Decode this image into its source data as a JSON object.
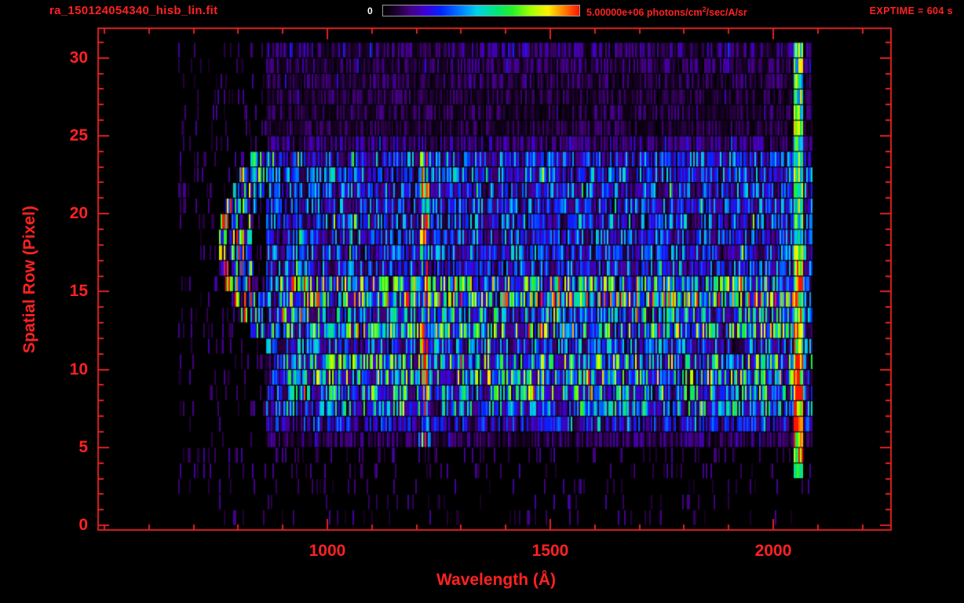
{
  "header": {
    "title": "ra_150124054340_hisb_lin.fit",
    "colorbar_min": "0",
    "colorbar_max_value": "5.00000e+06",
    "colorbar_units_prefix": " photons/cm",
    "colorbar_units_sup": "2",
    "colorbar_units_suffix": "/sec/A/sr",
    "exptime": "EXPTIME = 604 s"
  },
  "colors": {
    "background": "#000000",
    "accent_red": "#ff2222",
    "frame_red": "#dd2222",
    "colorbar_min_text": "#ffffff"
  },
  "chart_data": {
    "type": "heatmap",
    "title": "ra_150124054340_hisb_lin.fit",
    "xlabel": "Wavelength (Å)",
    "ylabel": "Spatial Row (Pixel)",
    "xlim": [
      486,
      2264
    ],
    "ylim": [
      -0.3,
      31.9
    ],
    "xticks": [
      1000,
      1500,
      2000
    ],
    "xminor_step": 100,
    "yticks": [
      0,
      5,
      10,
      15,
      20,
      25,
      30
    ],
    "yminor_step": 1,
    "value_range": [
      0,
      5000000
    ],
    "value_units": "photons/cm2/sec/A/sr",
    "exposure_time_s": 604,
    "data_wavelength_range": [
      665,
      2085
    ],
    "row_base_intensity": [
      0.02,
      0.02,
      0.025,
      0.03,
      0.05,
      0.1,
      0.22,
      0.38,
      0.42,
      0.48,
      0.46,
      0.3,
      0.5,
      0.4,
      0.56,
      0.5,
      0.27,
      0.29,
      0.27,
      0.3,
      0.27,
      0.28,
      0.3,
      0.27,
      0.13,
      0.08,
      0.09,
      0.08,
      0.09,
      0.1,
      0.12
    ],
    "features": {
      "blue_start_wavelength": 860,
      "bands_start_wavelength": 905,
      "band_onset": {
        "wavelength_range": [
          893,
          928
        ],
        "rows": [
          13,
          15
        ],
        "intensity": 0.66
      },
      "emission_line": {
        "center_wavelength": 1216,
        "sigma": 11,
        "rows": [
          5.5,
          24
        ],
        "intensity": 0.82
      },
      "arc_feature": {
        "apex_wavelength": 763,
        "apex_row": 18,
        "curvature": 2.3,
        "rows": [
          12.5,
          24
        ],
        "arcs": [
          {
            "offset": 0,
            "half_width": 9,
            "intensity": 0.95
          },
          {
            "offset": 21,
            "half_width": 7,
            "intensity": 0.7
          },
          {
            "offset": 39,
            "half_width": 8,
            "intensity": 0.78
          },
          {
            "offset": 57,
            "half_width": 7,
            "intensity": 0.5
          }
        ]
      },
      "right_edge_line": {
        "wavelength_range": [
          2042,
          2066
        ],
        "rows": [
          3,
          31
        ],
        "intensity_lower": 0.95,
        "intensity_upper": 0.68,
        "row_split": 17
      },
      "right_fade": {
        "wavelength_range": [
          2066,
          2085
        ],
        "max_intensity": 0.3
      }
    },
    "colormap_stops": [
      [
        0.0,
        0,
        0,
        0
      ],
      [
        0.06,
        25,
        0,
        40
      ],
      [
        0.14,
        70,
        0,
        130
      ],
      [
        0.22,
        60,
        0,
        220
      ],
      [
        0.3,
        0,
        40,
        255
      ],
      [
        0.4,
        0,
        130,
        255
      ],
      [
        0.48,
        0,
        210,
        230
      ],
      [
        0.58,
        0,
        230,
        120
      ],
      [
        0.66,
        40,
        240,
        40
      ],
      [
        0.75,
        160,
        255,
        0
      ],
      [
        0.84,
        255,
        240,
        0
      ],
      [
        0.92,
        255,
        130,
        0
      ],
      [
        1.0,
        255,
        20,
        0
      ]
    ]
  }
}
